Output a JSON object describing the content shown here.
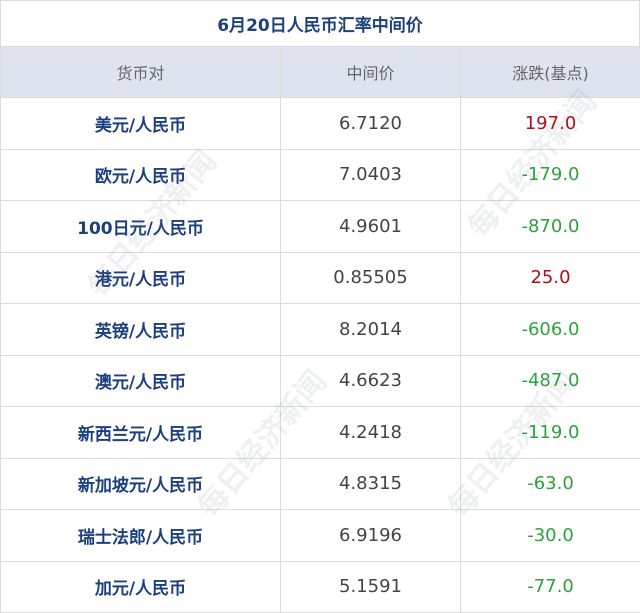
{
  "title": "6月20日人民币汇率中间价",
  "headers": [
    "货币对",
    "中间价",
    "涨跌(基点)"
  ],
  "rows": [
    {
      "pair": "美元/人民币",
      "mid": "6.7120",
      "change": "197.0",
      "dir": "up"
    },
    {
      "pair": "欧元/人民币",
      "mid": "7.0403",
      "change": "-179.0",
      "dir": "down"
    },
    {
      "pair": "100日元/人民币",
      "mid": "4.9601",
      "change": "-870.0",
      "dir": "down"
    },
    {
      "pair": "港元/人民币",
      "mid": "0.85505",
      "change": "25.0",
      "dir": "up"
    },
    {
      "pair": "英镑/人民币",
      "mid": "8.2014",
      "change": "-606.0",
      "dir": "down"
    },
    {
      "pair": "澳元/人民币",
      "mid": "4.6623",
      "change": "-487.0",
      "dir": "down"
    },
    {
      "pair": "新西兰元/人民币",
      "mid": "4.2418",
      "change": "-119.0",
      "dir": "down"
    },
    {
      "pair": "新加坡元/人民币",
      "mid": "4.8315",
      "change": "-63.0",
      "dir": "down"
    },
    {
      "pair": "瑞士法郎/人民币",
      "mid": "6.9196",
      "change": "-30.0",
      "dir": "down"
    },
    {
      "pair": "加元/人民币",
      "mid": "5.1591",
      "change": "-77.0",
      "dir": "down"
    }
  ],
  "watermark": "每日经济新闻",
  "colors": {
    "up": "#b10d14",
    "down": "#2fa23a",
    "pair": "#1d3f7d",
    "header_bg": "#dfe3ef"
  }
}
